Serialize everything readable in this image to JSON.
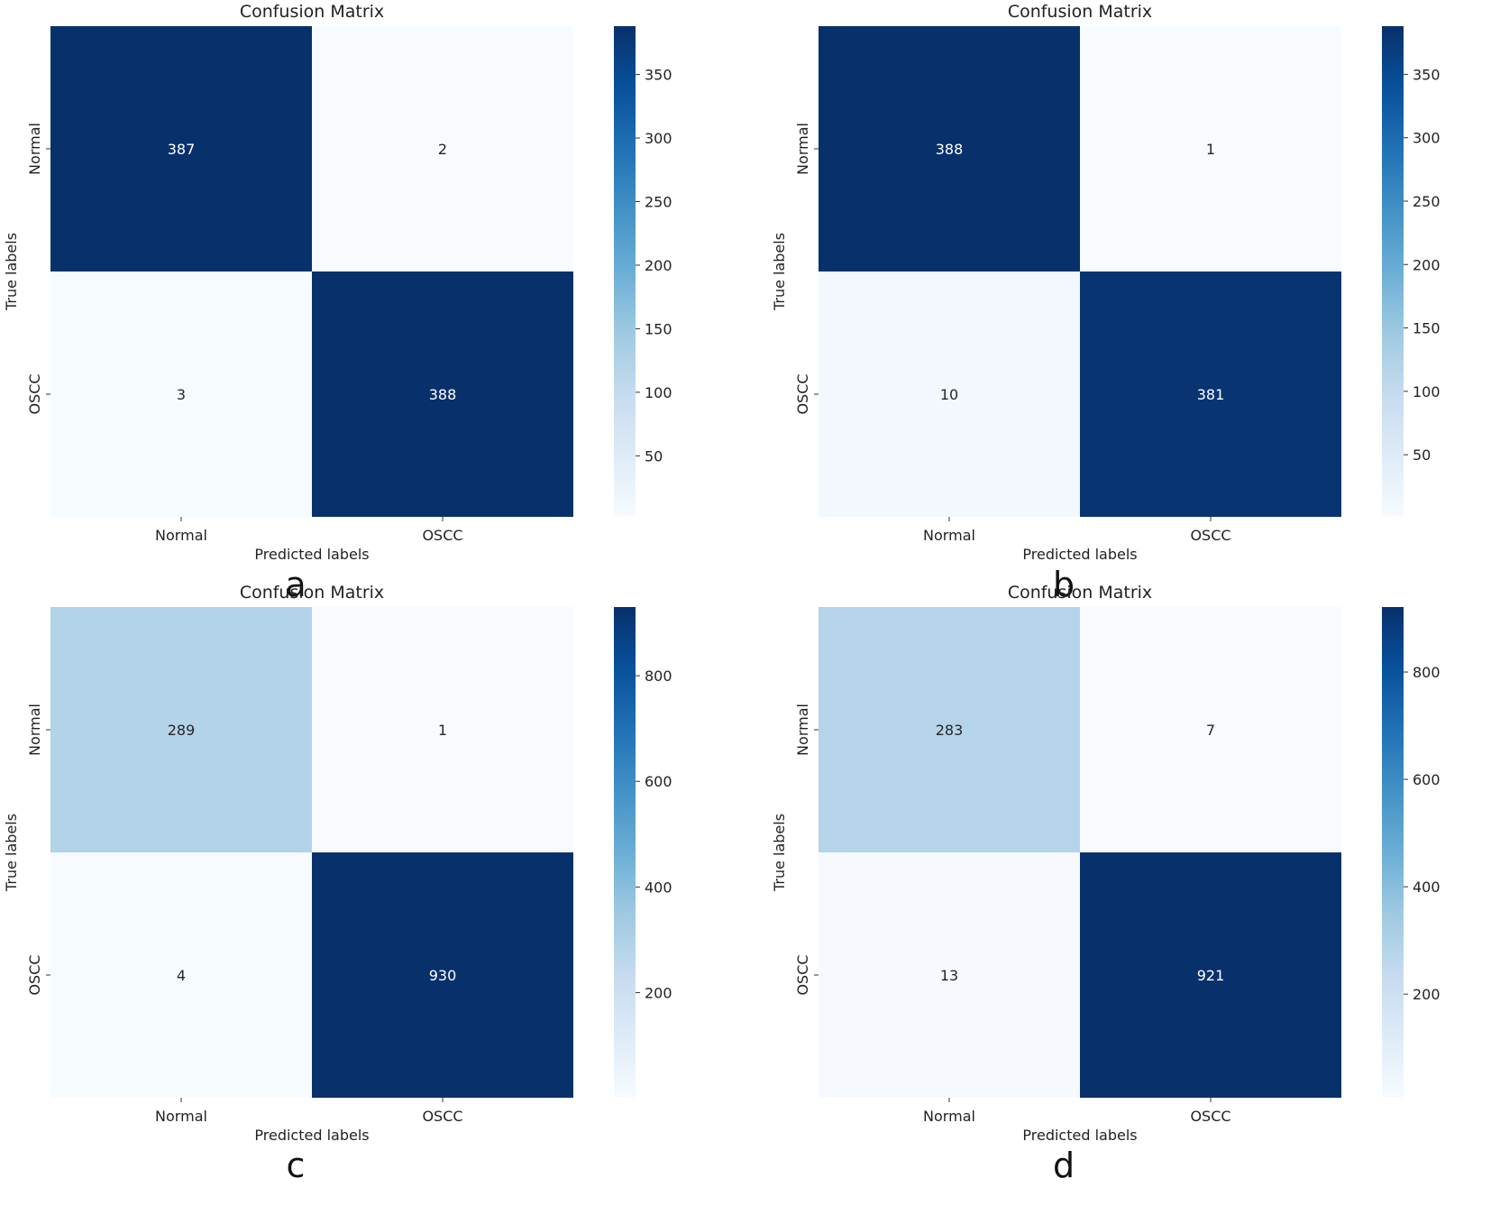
{
  "chart_data": [
    {
      "type": "heatmap",
      "panel": "a",
      "title": "Confusion Matrix",
      "xlabel": "Predicted labels",
      "ylabel": "True labels",
      "x_categories": [
        "Normal",
        "OSCC"
      ],
      "y_categories": [
        "Normal",
        "OSCC"
      ],
      "values": [
        [
          387,
          2
        ],
        [
          3,
          388
        ]
      ],
      "colormap": "Blues",
      "colorbar": {
        "range": [
          2,
          388
        ],
        "ticks": [
          50,
          100,
          150,
          200,
          250,
          300,
          350
        ]
      }
    },
    {
      "type": "heatmap",
      "panel": "b",
      "title": "Confusion Matrix",
      "xlabel": "Predicted labels",
      "ylabel": "True labels",
      "x_categories": [
        "Normal",
        "OSCC"
      ],
      "y_categories": [
        "Normal",
        "OSCC"
      ],
      "values": [
        [
          388,
          1
        ],
        [
          10,
          381
        ]
      ],
      "colormap": "Blues",
      "colorbar": {
        "range": [
          1,
          388
        ],
        "ticks": [
          50,
          100,
          150,
          200,
          250,
          300,
          350
        ]
      }
    },
    {
      "type": "heatmap",
      "panel": "c",
      "title": "Confusion Matrix",
      "xlabel": "Predicted labels",
      "ylabel": "True labels",
      "x_categories": [
        "Normal",
        "OSCC"
      ],
      "y_categories": [
        "Normal",
        "OSCC"
      ],
      "values": [
        [
          289,
          1
        ],
        [
          4,
          930
        ]
      ],
      "colormap": "Blues",
      "colorbar": {
        "range": [
          1,
          930
        ],
        "ticks": [
          200,
          400,
          600,
          800
        ]
      }
    },
    {
      "type": "heatmap",
      "panel": "d",
      "title": "Confusion Matrix",
      "xlabel": "Predicted labels",
      "ylabel": "True labels",
      "x_categories": [
        "Normal",
        "OSCC"
      ],
      "y_categories": [
        "Normal",
        "OSCC"
      ],
      "values": [
        [
          283,
          7
        ],
        [
          13,
          921
        ]
      ],
      "colormap": "Blues",
      "colorbar": {
        "range": [
          7,
          921
        ],
        "ticks": [
          200,
          400,
          600,
          800
        ]
      }
    }
  ]
}
